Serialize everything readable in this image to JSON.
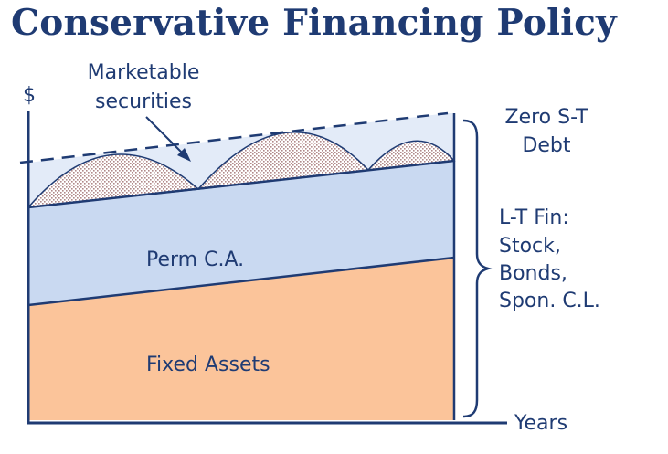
{
  "title": "Conservative Financing Policy",
  "labels": {
    "y_axis": "$",
    "x_axis": "Years",
    "marketable_line1": "Marketable",
    "marketable_line2": "securities",
    "perm_ca": "Perm C.A.",
    "fixed_assets": "Fixed Assets",
    "zero_st_line1": "Zero S-T",
    "zero_st_line2": "Debt",
    "lt_fin_lines": [
      "L-T Fin:",
      "Stock,",
      "Bonds,",
      "Spon. C.L."
    ]
  },
  "colors": {
    "title": "#1f3b73",
    "axis": "#1f3b73",
    "fixed_assets_fill": "#fbc49a",
    "perm_ca_fill": "#c9d9f1",
    "financing_band_fill": "#e3ebf8",
    "securities_hatch": "#c9a8a8"
  }
}
